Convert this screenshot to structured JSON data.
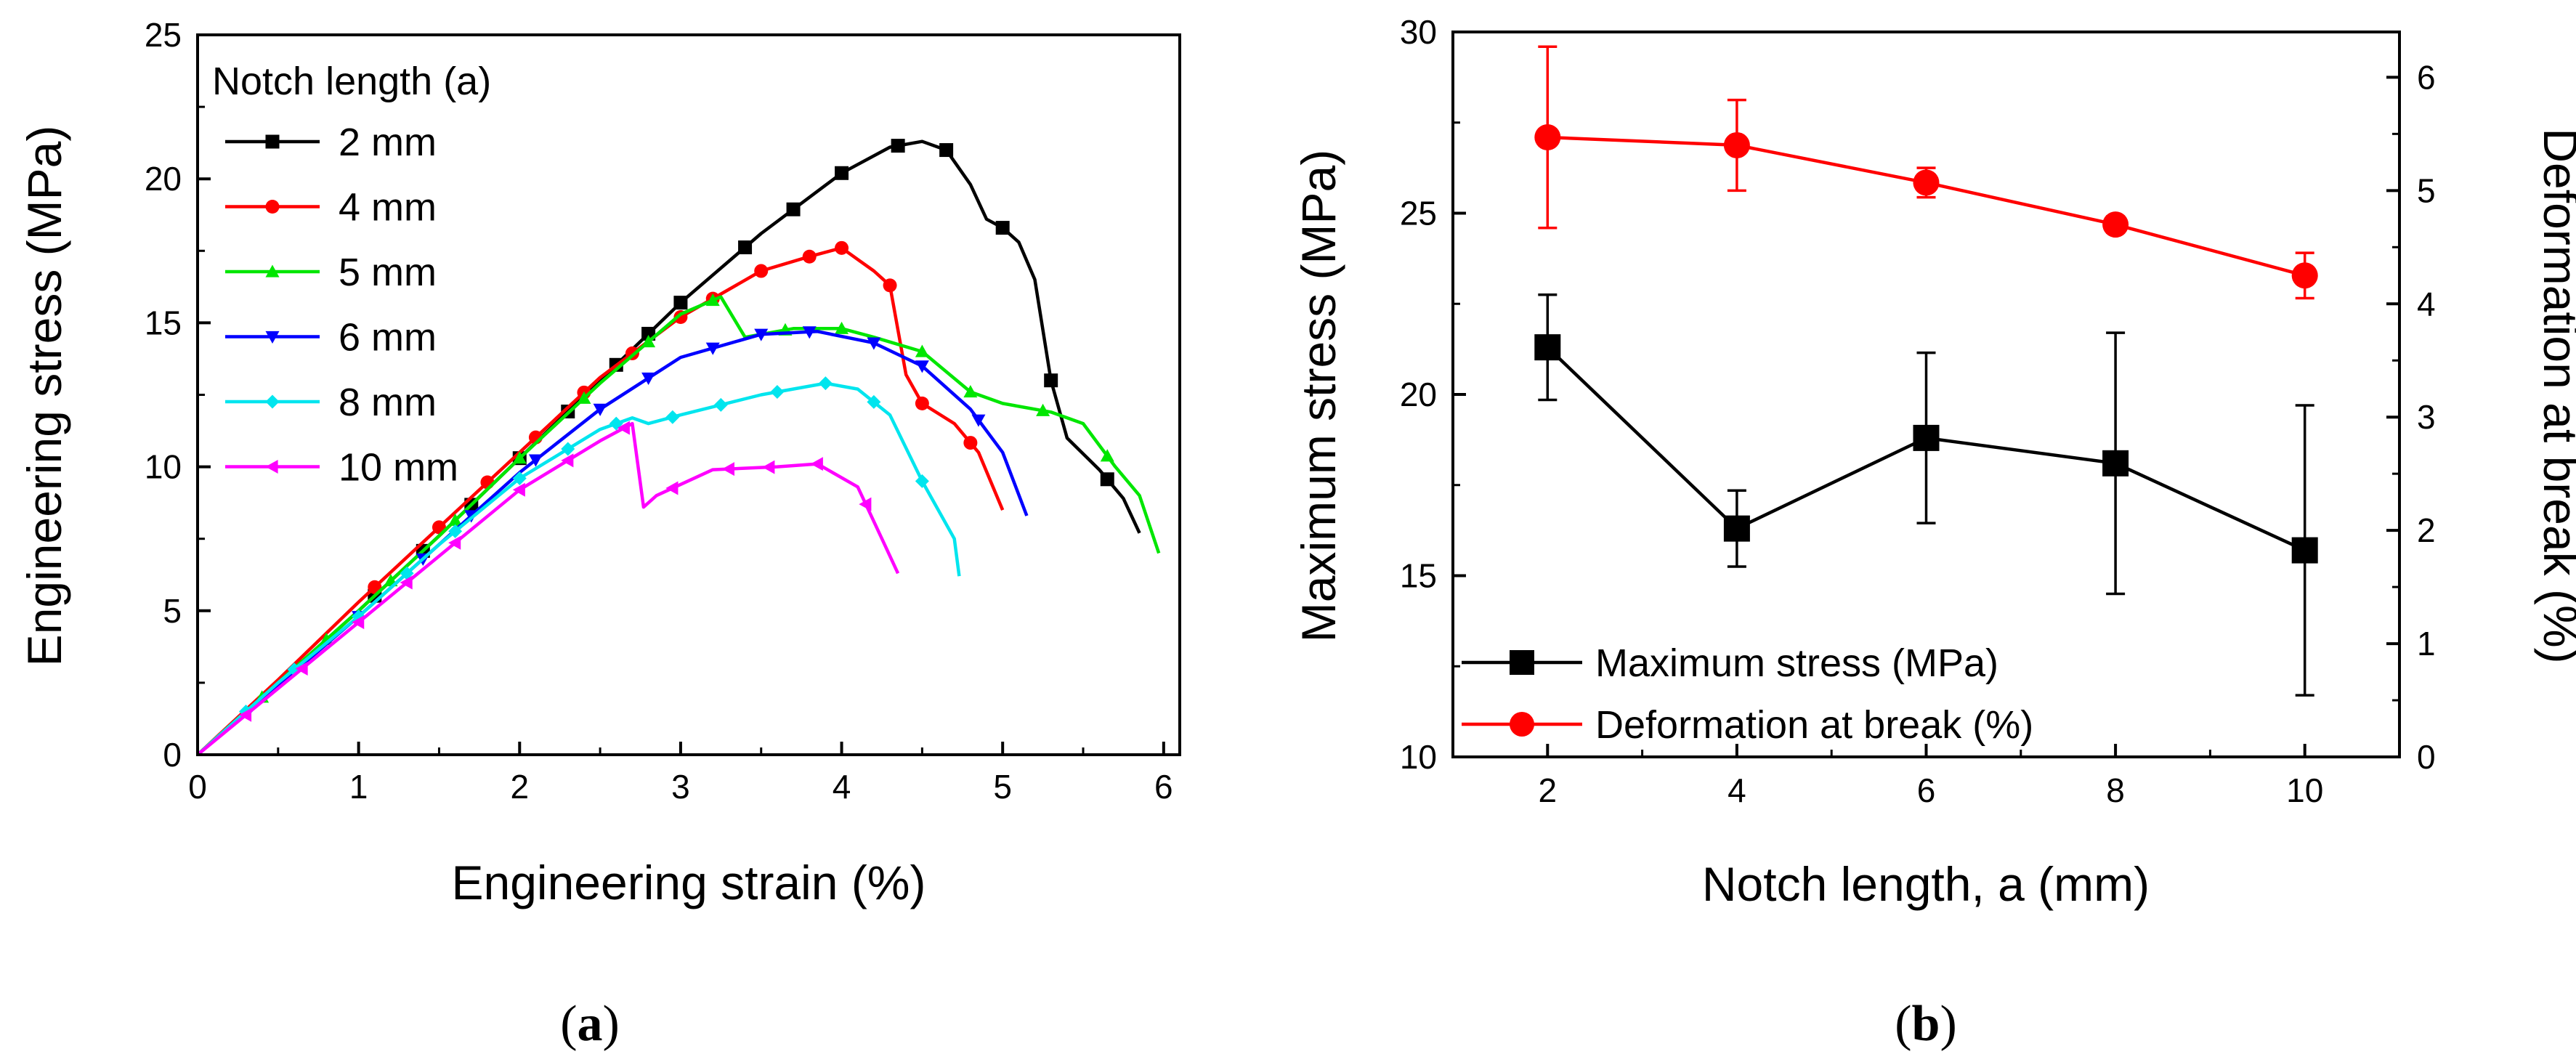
{
  "chart_data": [
    {
      "type": "line",
      "panel": "a",
      "caption": {
        "open": "(",
        "letter": "a",
        "close": ")"
      },
      "xlabel": "Engineering strain (%)",
      "ylabel": "Engineering stress (MPa)",
      "xlim": [
        0,
        6.1
      ],
      "ylim": [
        0,
        25
      ],
      "xticks": [
        0,
        1,
        2,
        3,
        4,
        5,
        6
      ],
      "yticks": [
        0,
        5,
        10,
        15,
        20,
        25
      ],
      "legend": {
        "title": "Notch length (a)",
        "position": "top-left"
      },
      "series": [
        {
          "name": "2 mm",
          "color": "#000000",
          "marker": "square",
          "x": [
            0,
            0.5,
            1.0,
            1.5,
            2.0,
            2.5,
            3.0,
            3.5,
            4.0,
            4.3,
            4.5,
            4.65,
            4.8,
            4.9,
            5.0,
            5.1,
            5.2,
            5.3,
            5.4,
            5.6,
            5.75,
            5.85
          ],
          "y": [
            0,
            2.5,
            5.0,
            7.6,
            10.3,
            13.0,
            15.7,
            18.1,
            20.2,
            21.1,
            21.3,
            21.0,
            19.8,
            18.6,
            18.3,
            17.8,
            16.5,
            13.0,
            11.0,
            9.9,
            8.9,
            7.7
          ],
          "marker_x": [
            1.1,
            1.4,
            1.7,
            2.0,
            2.3,
            2.6,
            2.8,
            3.0,
            3.4,
            3.7,
            4.0,
            4.35,
            4.65,
            5.0,
            5.3,
            5.65
          ]
        },
        {
          "name": "4 mm",
          "color": "#ff0000",
          "marker": "circle",
          "x": [
            0,
            0.5,
            1.0,
            1.5,
            2.0,
            2.5,
            3.0,
            3.5,
            3.8,
            4.0,
            4.1,
            4.2,
            4.3,
            4.4,
            4.5,
            4.7,
            4.85,
            5.0
          ],
          "y": [
            0,
            2.6,
            5.3,
            7.9,
            10.5,
            13.1,
            15.2,
            16.8,
            17.3,
            17.6,
            17.2,
            16.8,
            16.3,
            13.2,
            12.2,
            11.5,
            10.5,
            8.5
          ],
          "marker_x": [
            1.1,
            1.5,
            1.8,
            2.1,
            2.4,
            2.7,
            3.0,
            3.2,
            3.5,
            3.8,
            4.0,
            4.3,
            4.5,
            4.8
          ]
        },
        {
          "name": "5 mm",
          "color": "#00e600",
          "marker": "triangle-up",
          "x": [
            0,
            0.5,
            1.0,
            1.5,
            2.0,
            2.5,
            3.0,
            3.25,
            3.4,
            3.7,
            4.0,
            4.2,
            4.5,
            4.8,
            5.0,
            5.3,
            5.5,
            5.7,
            5.85,
            5.97
          ],
          "y": [
            0,
            2.5,
            5.0,
            7.6,
            10.3,
            12.9,
            15.3,
            15.9,
            14.5,
            14.8,
            14.8,
            14.5,
            14.0,
            12.6,
            12.2,
            11.9,
            11.5,
            10.0,
            9.0,
            7.0
          ],
          "marker_x": [
            0.4,
            0.8,
            1.2,
            1.6,
            2.0,
            2.4,
            2.8,
            3.2,
            3.65,
            4.0,
            4.5,
            4.8,
            5.25,
            5.65
          ]
        },
        {
          "name": "6 mm",
          "color": "#0000ff",
          "marker": "triangle-down",
          "x": [
            0,
            0.5,
            1.0,
            1.5,
            2.0,
            2.5,
            3.0,
            3.5,
            3.85,
            4.2,
            4.5,
            4.8,
            5.0,
            5.15
          ],
          "y": [
            0,
            2.4,
            4.8,
            7.3,
            9.8,
            12.0,
            13.8,
            14.6,
            14.7,
            14.3,
            13.5,
            12.0,
            10.5,
            8.3
          ],
          "marker_x": [
            1.0,
            1.4,
            1.7,
            2.1,
            2.5,
            2.8,
            3.2,
            3.5,
            3.8,
            4.2,
            4.5,
            4.85
          ]
        },
        {
          "name": "8 mm",
          "color": "#00e5ee",
          "marker": "diamond",
          "x": [
            0,
            0.5,
            1.0,
            1.5,
            2.0,
            2.5,
            2.7,
            2.8,
            3.0,
            3.5,
            3.9,
            4.1,
            4.3,
            4.5,
            4.7,
            4.73
          ],
          "y": [
            0,
            2.5,
            4.8,
            7.3,
            9.6,
            11.3,
            11.7,
            11.5,
            11.8,
            12.5,
            12.9,
            12.7,
            11.8,
            9.5,
            7.5,
            6.2
          ],
          "marker_x": [
            0.3,
            0.6,
            1.0,
            1.3,
            1.6,
            2.0,
            2.3,
            2.6,
            2.95,
            3.25,
            3.6,
            3.9,
            4.2,
            4.5
          ]
        },
        {
          "name": "10 mm",
          "color": "#ff00ff",
          "marker": "triangle-left",
          "x": [
            0,
            0.5,
            1.0,
            1.5,
            2.0,
            2.5,
            2.7,
            2.77,
            2.85,
            3.2,
            3.6,
            3.85,
            4.1,
            4.25,
            4.35
          ],
          "y": [
            0,
            2.3,
            4.6,
            6.9,
            9.2,
            10.9,
            11.5,
            8.6,
            9.0,
            9.9,
            10.0,
            10.1,
            9.3,
            7.5,
            6.3
          ],
          "marker_x": [
            0.3,
            0.65,
            1.0,
            1.3,
            1.6,
            2.0,
            2.3,
            2.65,
            2.95,
            3.3,
            3.55,
            3.85,
            4.15
          ]
        }
      ]
    },
    {
      "type": "line",
      "panel": "b",
      "caption": {
        "open": "(",
        "letter": "b",
        "close": ")"
      },
      "xlabel": "Notch length, a (mm)",
      "ylabel_left": "Maximum stress (MPa)",
      "ylabel_right": "Deformation at break (%)",
      "xlim": [
        1,
        11
      ],
      "ylim_left": [
        10,
        30
      ],
      "ylim_right": [
        0,
        6.4
      ],
      "xticks": [
        2,
        4,
        6,
        8,
        10
      ],
      "yticks_left": [
        10,
        15,
        20,
        25,
        30
      ],
      "yticks_right": [
        0,
        1,
        2,
        3,
        4,
        5,
        6
      ],
      "legend": {
        "position": "bottom-left"
      },
      "series": [
        {
          "name": "Maximum stress (MPa)",
          "axis": "left",
          "color": "#000000",
          "marker": "square",
          "x": [
            2,
            4,
            6,
            8,
            10
          ],
          "y": [
            21.3,
            16.3,
            18.8,
            18.1,
            15.7
          ],
          "err": [
            1.45,
            1.05,
            2.35,
            3.6,
            4.0
          ]
        },
        {
          "name": "Deformation at break (%)",
          "axis": "right",
          "color": "#ff0000",
          "marker": "circle",
          "x": [
            2,
            4,
            6,
            8,
            10
          ],
          "y": [
            5.47,
            5.4,
            5.07,
            4.7,
            4.25
          ],
          "err": [
            0.8,
            0.4,
            0.13,
            0.07,
            0.2
          ]
        }
      ]
    }
  ]
}
